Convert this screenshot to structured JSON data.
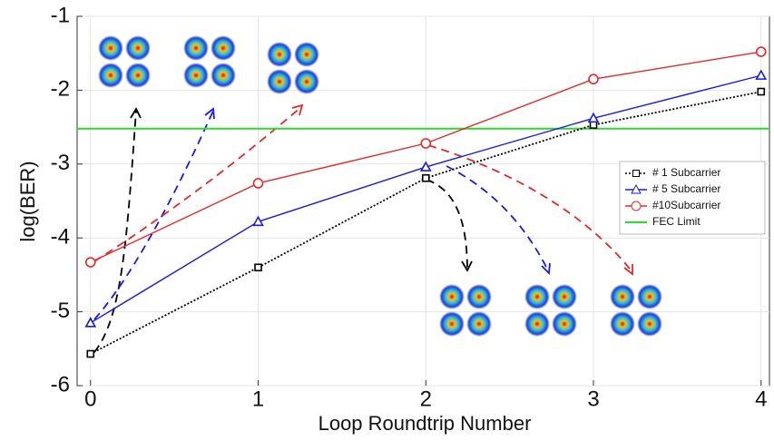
{
  "chart_data": {
    "type": "line",
    "x_label": "Loop Roundtrip Number",
    "y_label": "log(BER)",
    "x": [
      0,
      1,
      2,
      3,
      4
    ],
    "xlim": [
      -0.08,
      4.05
    ],
    "xticks": [
      0,
      1,
      2,
      3,
      4
    ],
    "ylim": [
      -6,
      -1
    ],
    "yticks": [
      -1,
      -2,
      -3,
      -4,
      -5,
      -6
    ],
    "grid": true,
    "legend": "right",
    "series": [
      {
        "name": "# 1 Subcarrier",
        "color": "#000000",
        "marker": "square",
        "linestyle": "dotted",
        "values": [
          -5.57,
          -4.4,
          -3.19,
          -2.47,
          -2.02
        ]
      },
      {
        "name": "# 5 Subcarrier",
        "color": "#1a1adb",
        "marker": "triangle",
        "linestyle": "solid",
        "values": [
          -5.15,
          -3.78,
          -3.04,
          -2.38,
          -1.8
        ]
      },
      {
        "name": "#10Subcarrier",
        "color": "#e02a2a",
        "marker": "circle",
        "linestyle": "solid",
        "values": [
          -4.33,
          -3.26,
          -2.72,
          -1.85,
          -1.48
        ]
      }
    ],
    "reference_line": {
      "name": "FEC Limit",
      "color": "#2bdc2b",
      "value": -2.52
    }
  }
}
